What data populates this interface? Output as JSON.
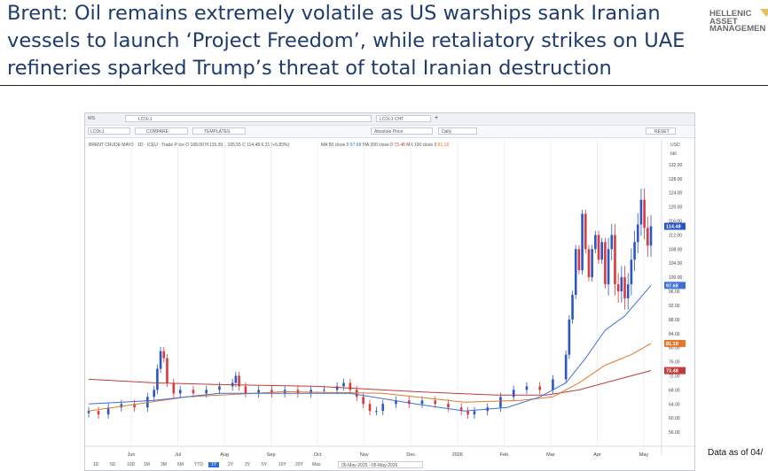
{
  "page": {
    "title": "Brent: Oil remains extremely volatile as US warships sank Iranian vessels to launch ‘Project Freedom’, while retaliatory strikes on UAE refineries sparked Trump’s threat of total Iranian destruction",
    "logo_lines": [
      "HELLENIC",
      "ASSET",
      "MANAGEMEN"
    ],
    "note": "Data as of 04/"
  },
  "terminal": {
    "ticker_prefix": "WS",
    "ticker_field": "LCOc1",
    "chart_name": "LCOc1 CHT",
    "ric": "LCOc1",
    "compare_label": "COMPARE",
    "templates_label": "TEMPLATES",
    "price_type": "Absolute Price",
    "interval": "Daily",
    "reset_label": "RESET",
    "legend": "BRENT CRUDE MAY6 · 1D · ICEU · Trade Price  O 108.00  H 115.39  L 105.55  C 114.48  6.31 (+5.83%)",
    "ma_legend": [
      {
        "text": "MA 50 close 0",
        "value": "97.68",
        "color": "#3d6fd8"
      },
      {
        "text": "MA 200 close 0",
        "value": "73.48",
        "color": "#c23a3a"
      },
      {
        "text": "MA 100 close 0",
        "value": "81.19",
        "color": "#e07a2e"
      }
    ],
    "currency": "USD",
    "unit": "bbl",
    "periods": [
      "1D",
      "5D",
      "10D",
      "1M",
      "3M",
      "6M",
      "YTD",
      "1Y",
      "2Y",
      "3Y",
      "5Y",
      "10Y",
      "20Y",
      "Max"
    ],
    "active_period": "1Y",
    "date_range": "05-May-2025 - 05-May-2026"
  },
  "chart_data": {
    "type": "line",
    "subtype": "candlestick with moving averages",
    "x_ticks": [
      "Jun",
      "Jul",
      "Aug",
      "Sep",
      "Oct",
      "Nov",
      "Dec",
      "2026",
      "Feb",
      "Mar",
      "Apr",
      "May"
    ],
    "y_ticks": [
      56,
      60,
      64,
      68,
      72,
      76,
      80,
      84,
      88,
      92,
      96,
      100,
      104,
      108,
      112,
      116,
      120,
      124,
      128,
      132
    ],
    "ylim": [
      53,
      135
    ],
    "y_axis_position": "right",
    "grid": "vertical only",
    "last_values": {
      "price": 114.48,
      "ma50": 97.68,
      "ma100": 81.19,
      "ma200": 73.48
    },
    "colors": {
      "up": "#2a56c6",
      "down": "#d93a3a",
      "ma50": "#3d6fd8",
      "ma100": "#e07a2e",
      "ma200": "#c23a3a"
    },
    "price_path": [
      [
        0,
        62
      ],
      [
        3,
        61
      ],
      [
        6,
        63
      ],
      [
        10,
        64
      ],
      [
        14,
        63
      ],
      [
        18,
        66
      ],
      [
        20,
        68
      ],
      [
        21,
        74
      ],
      [
        22,
        79
      ],
      [
        23,
        77
      ],
      [
        24,
        70
      ],
      [
        26,
        67
      ],
      [
        28,
        68
      ],
      [
        32,
        67
      ],
      [
        36,
        68
      ],
      [
        40,
        69
      ],
      [
        44,
        70
      ],
      [
        45,
        72
      ],
      [
        46,
        69
      ],
      [
        48,
        67
      ],
      [
        52,
        68
      ],
      [
        56,
        67
      ],
      [
        60,
        68
      ],
      [
        64,
        67
      ],
      [
        68,
        68
      ],
      [
        72,
        68
      ],
      [
        76,
        69
      ],
      [
        78,
        70
      ],
      [
        80,
        68
      ],
      [
        82,
        66
      ],
      [
        84,
        64
      ],
      [
        86,
        62
      ],
      [
        88,
        62
      ],
      [
        90,
        64
      ],
      [
        94,
        65
      ],
      [
        98,
        64
      ],
      [
        102,
        65
      ],
      [
        106,
        64
      ],
      [
        110,
        63
      ],
      [
        114,
        62
      ],
      [
        116,
        61
      ],
      [
        118,
        62
      ],
      [
        122,
        63
      ],
      [
        126,
        66
      ],
      [
        130,
        68
      ],
      [
        134,
        69
      ],
      [
        138,
        68
      ],
      [
        142,
        71
      ],
      [
        146,
        78
      ],
      [
        147,
        88
      ],
      [
        148,
        95
      ],
      [
        149,
        108
      ],
      [
        150,
        102
      ],
      [
        151,
        118
      ],
      [
        152,
        108
      ],
      [
        153,
        100
      ],
      [
        154,
        108
      ],
      [
        155,
        112
      ],
      [
        156,
        105
      ],
      [
        157,
        110
      ],
      [
        158,
        98
      ],
      [
        159,
        108
      ],
      [
        160,
        112
      ],
      [
        161,
        98
      ],
      [
        162,
        96
      ],
      [
        163,
        100
      ],
      [
        164,
        94
      ],
      [
        165,
        98
      ],
      [
        166,
        105
      ],
      [
        167,
        110
      ],
      [
        168,
        115
      ],
      [
        169,
        122
      ],
      [
        170,
        114
      ],
      [
        171,
        109
      ],
      [
        172,
        114.48
      ]
    ],
    "ma50_path": [
      [
        0,
        64
      ],
      [
        20,
        65
      ],
      [
        40,
        67
      ],
      [
        60,
        67
      ],
      [
        80,
        67
      ],
      [
        100,
        64
      ],
      [
        115,
        62
      ],
      [
        128,
        63
      ],
      [
        138,
        66
      ],
      [
        146,
        70
      ],
      [
        152,
        77
      ],
      [
        158,
        85
      ],
      [
        164,
        89
      ],
      [
        172,
        97.68
      ]
    ],
    "ma100_path": [
      [
        0,
        62
      ],
      [
        30,
        66
      ],
      [
        60,
        67.5
      ],
      [
        90,
        67
      ],
      [
        115,
        64.5
      ],
      [
        132,
        65
      ],
      [
        142,
        66
      ],
      [
        150,
        70
      ],
      [
        158,
        75
      ],
      [
        166,
        78
      ],
      [
        172,
        81.19
      ]
    ],
    "ma200_path": [
      [
        0,
        71
      ],
      [
        20,
        70
      ],
      [
        40,
        69.5
      ],
      [
        70,
        69
      ],
      [
        100,
        67.5
      ],
      [
        125,
        66.5
      ],
      [
        140,
        66.5
      ],
      [
        150,
        68
      ],
      [
        158,
        70
      ],
      [
        166,
        72
      ],
      [
        172,
        73.48
      ]
    ]
  }
}
